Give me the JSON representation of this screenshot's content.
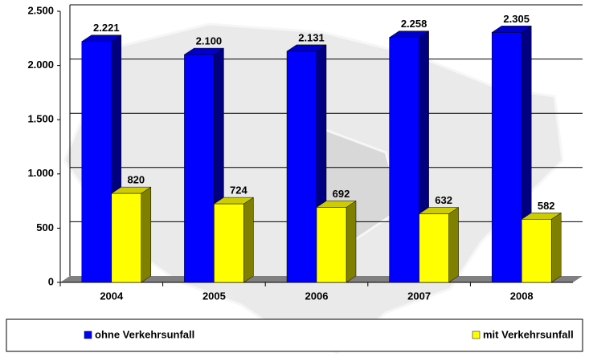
{
  "chart_data": {
    "type": "bar3d",
    "categories": [
      "2004",
      "2005",
      "2006",
      "2007",
      "2008"
    ],
    "series": [
      {
        "name": "ohne Verkehrsunfall",
        "color": "#0000ff",
        "values": [
          2221,
          2100,
          2131,
          2258,
          2305
        ],
        "value_labels": [
          "2.221",
          "2.100",
          "2.131",
          "2.258",
          "2.305"
        ]
      },
      {
        "name": "mit Verkehrsunfall",
        "color": "#ffff00",
        "values": [
          820,
          724,
          692,
          632,
          582
        ]
      }
    ],
    "ylim": [
      0,
      2500
    ],
    "yticks": [
      0,
      {
        "value": 500,
        "label": "500"
      },
      {
        "value": 1000,
        "label": "1.000"
      },
      {
        "value": 1500,
        "label": "1.500"
      },
      {
        "value": 2000,
        "label": "2.000"
      },
      {
        "value": 2500,
        "label": "2.500"
      }
    ],
    "grid": true,
    "legend": "bottom"
  }
}
